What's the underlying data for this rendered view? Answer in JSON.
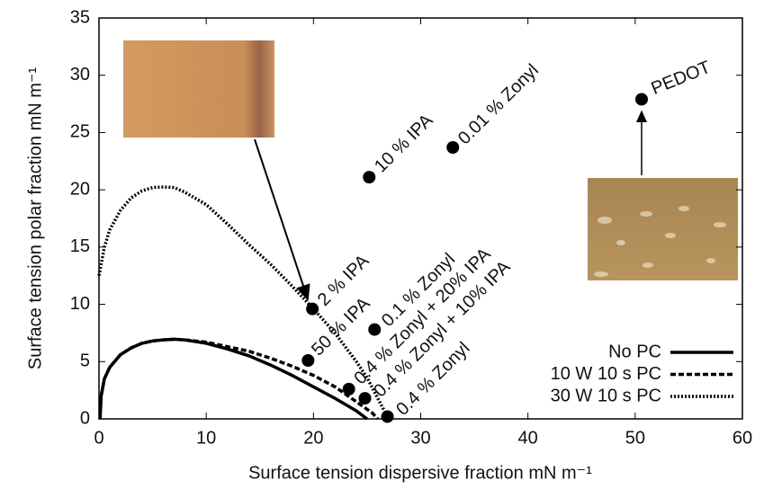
{
  "chart_data": {
    "type": "scatter",
    "x_label": "Surface tension dispersive fraction mN m⁻¹",
    "y_label": "Surface tension polar fraction mN m⁻¹",
    "xlim": [
      0,
      60
    ],
    "xticks": [
      0,
      10,
      20,
      30,
      40,
      50,
      60
    ],
    "ylim": [
      0,
      35
    ],
    "yticks": [
      0,
      5,
      10,
      15,
      20,
      25,
      30,
      35
    ],
    "points": {
      "color": "#000000",
      "labels": [
        "PEDOT",
        "0.01 % Zonyl",
        "10 % IPA",
        "2 % IPA",
        "50 % IPA",
        "0.1 % Zonyl",
        "0.4 % Zonyl + 20% IPA",
        "0.4 % Zonyl + 10% IPA",
        "0.4 % Zonyl"
      ],
      "x": [
        50.6,
        33.0,
        25.2,
        19.9,
        19.5,
        25.7,
        23.3,
        24.8,
        26.9
      ],
      "y": [
        27.9,
        23.7,
        21.1,
        9.6,
        5.1,
        7.8,
        2.6,
        1.8,
        0.2
      ]
    },
    "legend": "lower right",
    "series": [
      {
        "name": "No PC",
        "color": "#000000",
        "style": "solid",
        "x": [
          0.1,
          0.2,
          0.5,
          1,
          2,
          3,
          4,
          5,
          6,
          7,
          8,
          10,
          12,
          14,
          16,
          18,
          20,
          22,
          24,
          25
        ],
        "y": [
          0,
          2,
          3.5,
          4.5,
          5.6,
          6.2,
          6.6,
          6.8,
          6.9,
          6.95,
          6.9,
          6.6,
          6.1,
          5.5,
          4.7,
          3.8,
          2.8,
          1.8,
          0.7,
          0
        ]
      },
      {
        "name": "10 W 10 s PC",
        "color": "#000000",
        "style": "dashed",
        "x": [
          0.1,
          0.2,
          0.5,
          1,
          2,
          3,
          4,
          5,
          6,
          7,
          8,
          10,
          12,
          14,
          16,
          18,
          20,
          22,
          24,
          25.5,
          26
        ],
        "y": [
          0,
          2,
          3.5,
          4.5,
          5.6,
          6.2,
          6.6,
          6.8,
          6.9,
          6.95,
          6.9,
          6.7,
          6.3,
          5.9,
          5.3,
          4.6,
          3.8,
          2.8,
          1.5,
          0.5,
          0
        ]
      },
      {
        "name": "30 W 10 s PC",
        "color": "#000000",
        "style": "dotted",
        "x": [
          0,
          0.5,
          1,
          2,
          3,
          4,
          5,
          6,
          7,
          8,
          10,
          12,
          14,
          16,
          18,
          20,
          22,
          24,
          25,
          26,
          27
        ],
        "y": [
          12.5,
          15,
          16.5,
          18.2,
          19.3,
          19.9,
          20.2,
          20.25,
          20.2,
          19.8,
          18.7,
          17,
          15.2,
          13.5,
          11.6,
          9.6,
          7.5,
          5,
          3.6,
          1.8,
          0
        ]
      }
    ]
  }
}
